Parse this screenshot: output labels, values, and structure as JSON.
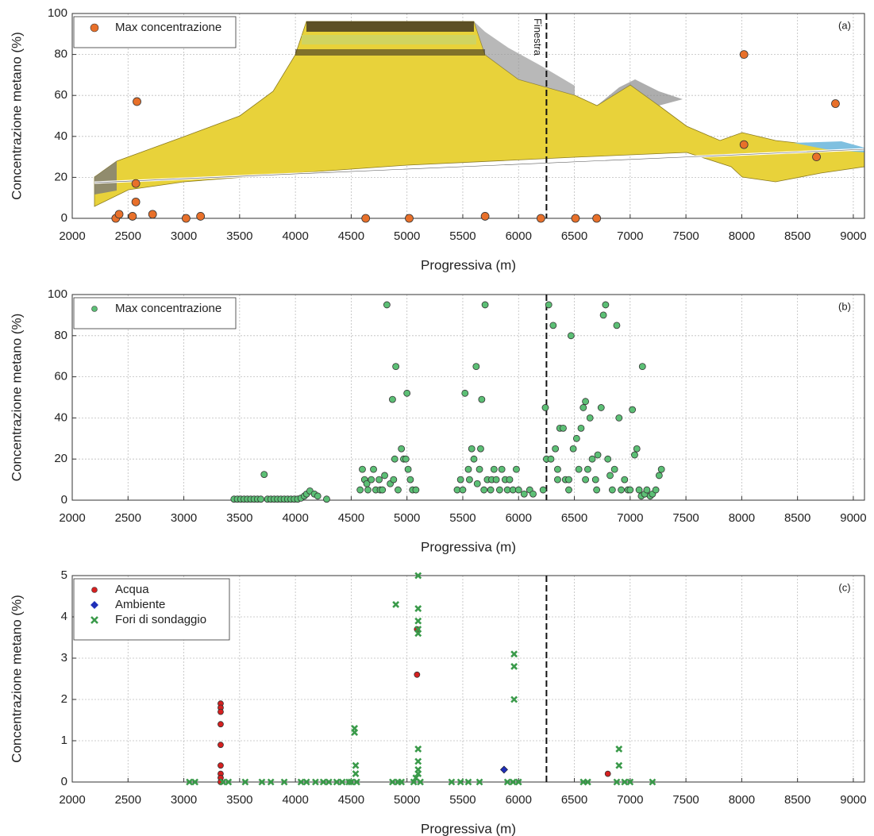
{
  "chart_data": [
    {
      "type": "scatter",
      "panel_label": "(a)",
      "x_label": "Progressiva (m)",
      "y_label": "Concentrazione metano (%)",
      "xlim": [
        2000,
        9100
      ],
      "ylim": [
        0,
        100
      ],
      "xticks": [
        2000,
        2500,
        3000,
        3500,
        4000,
        4500,
        5000,
        5500,
        6000,
        6500,
        7000,
        7500,
        8000,
        8500,
        9000
      ],
      "yticks": [
        0,
        20,
        40,
        60,
        80,
        100
      ],
      "grid": true,
      "legend": "upper left",
      "vline": 6250,
      "vline_label": "Finestra",
      "series": [
        {
          "name": "Max concentrazione",
          "color": "#e8702a",
          "marker": "circle",
          "x": [
            2390,
            2420,
            2540,
            2570,
            2570,
            2580,
            2720,
            3020,
            3150,
            4630,
            5020,
            5700,
            6200,
            6510,
            6700,
            8020,
            8020,
            8670,
            8840
          ],
          "values": [
            0,
            2,
            1,
            8,
            17,
            57,
            2,
            0,
            1,
            0,
            0,
            1,
            0,
            0,
            0,
            80,
            36,
            30,
            56
          ]
        }
      ]
    },
    {
      "type": "scatter",
      "panel_label": "(b)",
      "x_label": "Progressiva (m)",
      "y_label": "Concentrazione metano (%)",
      "xlim": [
        2000,
        9100
      ],
      "ylim": [
        0,
        100
      ],
      "xticks": [
        2000,
        2500,
        3000,
        3500,
        4000,
        4500,
        5000,
        5500,
        6000,
        6500,
        7000,
        7500,
        8000,
        8500,
        9000
      ],
      "yticks": [
        0,
        20,
        40,
        60,
        80,
        100
      ],
      "grid": true,
      "legend": "upper left",
      "vline": 6250,
      "series": [
        {
          "name": "Max concentrazione",
          "color": "#5cbf75",
          "marker": "circle",
          "x": [
            3450,
            3480,
            3510,
            3540,
            3570,
            3600,
            3630,
            3660,
            3690,
            3720,
            3750,
            3780,
            3810,
            3840,
            3870,
            3900,
            3930,
            3960,
            3990,
            4020,
            4050,
            4080,
            4100,
            4130,
            4170,
            4200,
            4280,
            4580,
            4600,
            4620,
            4640,
            4650,
            4680,
            4700,
            4720,
            4750,
            4760,
            4780,
            4800,
            4820,
            4850,
            4870,
            4880,
            4890,
            4900,
            4920,
            4950,
            4970,
            4990,
            5000,
            5010,
            5030,
            5050,
            5080,
            5450,
            5480,
            5500,
            5520,
            5550,
            5560,
            5580,
            5600,
            5620,
            5630,
            5650,
            5660,
            5670,
            5690,
            5700,
            5720,
            5750,
            5760,
            5780,
            5800,
            5830,
            5850,
            5880,
            5900,
            5920,
            5950,
            5980,
            6000,
            6050,
            6100,
            6130,
            6220,
            6240,
            6250,
            6270,
            6290,
            6310,
            6330,
            6350,
            6350,
            6370,
            6400,
            6420,
            6450,
            6450,
            6470,
            6490,
            6520,
            6540,
            6560,
            6580,
            6600,
            6600,
            6620,
            6640,
            6660,
            6690,
            6700,
            6710,
            6740,
            6760,
            6780,
            6800,
            6820,
            6840,
            6860,
            6880,
            6900,
            6920,
            6950,
            6980,
            7000,
            7020,
            7040,
            7060,
            7080,
            7100,
            7110,
            7130,
            7150,
            7180,
            7200,
            7230,
            7260,
            7280
          ],
          "values": [
            0.5,
            0.5,
            0.5,
            0.5,
            0.5,
            0.5,
            0.5,
            0.5,
            0.5,
            12.5,
            0.5,
            0.5,
            0.5,
            0.5,
            0.5,
            0.5,
            0.5,
            0.5,
            0.5,
            0.5,
            1,
            2,
            3,
            4.5,
            3,
            2,
            0.5,
            5,
            15,
            10,
            8,
            5,
            10,
            15,
            5,
            10,
            5,
            5,
            12,
            95,
            8,
            49,
            10,
            20,
            65,
            5,
            25,
            20,
            20,
            52,
            15,
            10,
            5,
            5,
            5,
            10,
            5,
            52,
            15,
            10,
            25,
            20,
            65,
            8,
            15,
            25,
            49,
            5,
            95,
            10,
            5,
            10,
            15,
            10,
            5,
            15,
            10,
            5,
            10,
            5,
            15,
            5,
            3,
            5,
            3,
            5,
            45,
            20,
            95,
            20,
            85,
            25,
            15,
            10,
            35,
            35,
            10,
            10,
            5,
            80,
            25,
            30,
            15,
            35,
            45,
            48,
            10,
            15,
            40,
            20,
            10,
            5,
            22,
            45,
            90,
            95,
            20,
            12,
            5,
            15,
            85,
            40,
            5,
            10,
            5,
            5,
            44,
            22,
            25,
            5,
            2,
            65,
            3,
            5,
            2,
            3,
            5,
            12,
            15
          ]
        }
      ]
    },
    {
      "type": "scatter",
      "panel_label": "(c)",
      "x_label": "Progressiva (m)",
      "y_label": "Concentrazione metano (%)",
      "xlim": [
        2000,
        9100
      ],
      "ylim": [
        0,
        5
      ],
      "xticks": [
        2000,
        2500,
        3000,
        3500,
        4000,
        4500,
        5000,
        5500,
        6000,
        6500,
        7000,
        7500,
        8000,
        8500,
        9000
      ],
      "yticks": [
        0,
        1,
        2,
        3,
        4,
        5
      ],
      "grid": true,
      "legend": "upper left",
      "vline": 6250,
      "series": [
        {
          "name": "Acqua",
          "color": "#d62020",
          "marker": "circle",
          "x": [
            3330,
            3330,
            3330,
            3330,
            3330,
            3330,
            3330,
            3330,
            3330,
            5090,
            5090,
            6800
          ],
          "values": [
            1.9,
            1.8,
            1.7,
            1.4,
            0.9,
            0.4,
            0.2,
            0.1,
            0,
            3.7,
            2.6,
            0.2
          ]
        },
        {
          "name": "Ambiente",
          "color": "#1f2fb8",
          "marker": "diamond",
          "x": [
            5870
          ],
          "values": [
            0.3
          ]
        },
        {
          "name": "Fori di sondaggio",
          "color": "#3a9a4a",
          "marker": "x",
          "x": [
            3050,
            3100,
            3350,
            3400,
            3550,
            3700,
            3780,
            3900,
            4050,
            4100,
            4180,
            4250,
            4300,
            4370,
            4420,
            4480,
            4500,
            4550,
            4870,
            4920,
            4950,
            5060,
            5120,
            5400,
            5480,
            5550,
            5650,
            5900,
            5950,
            6000,
            6580,
            6620,
            6880,
            6950,
            7000,
            7200,
            4530,
            4530,
            4540,
            4540,
            4900,
            5100,
            5100,
            5100,
            5100,
            5100,
            5100,
            5100,
            5100,
            5100,
            5080,
            5960,
            5960,
            5960,
            6900,
            6900
          ],
          "values": [
            0,
            0,
            0,
            0,
            0,
            0,
            0,
            0,
            0,
            0,
            0,
            0,
            0,
            0,
            0,
            0,
            0,
            0,
            0,
            0,
            0,
            0,
            0,
            0,
            0,
            0,
            0,
            0,
            0,
            0,
            0,
            0,
            0,
            0,
            0,
            0,
            1.3,
            1.2,
            0.4,
            0.2,
            4.3,
            5,
            4.2,
            3.9,
            3.7,
            3.6,
            0.8,
            0.5,
            0.3,
            0.2,
            0.1,
            3.1,
            2.8,
            2,
            0.8,
            0.4
          ]
        }
      ]
    }
  ]
}
